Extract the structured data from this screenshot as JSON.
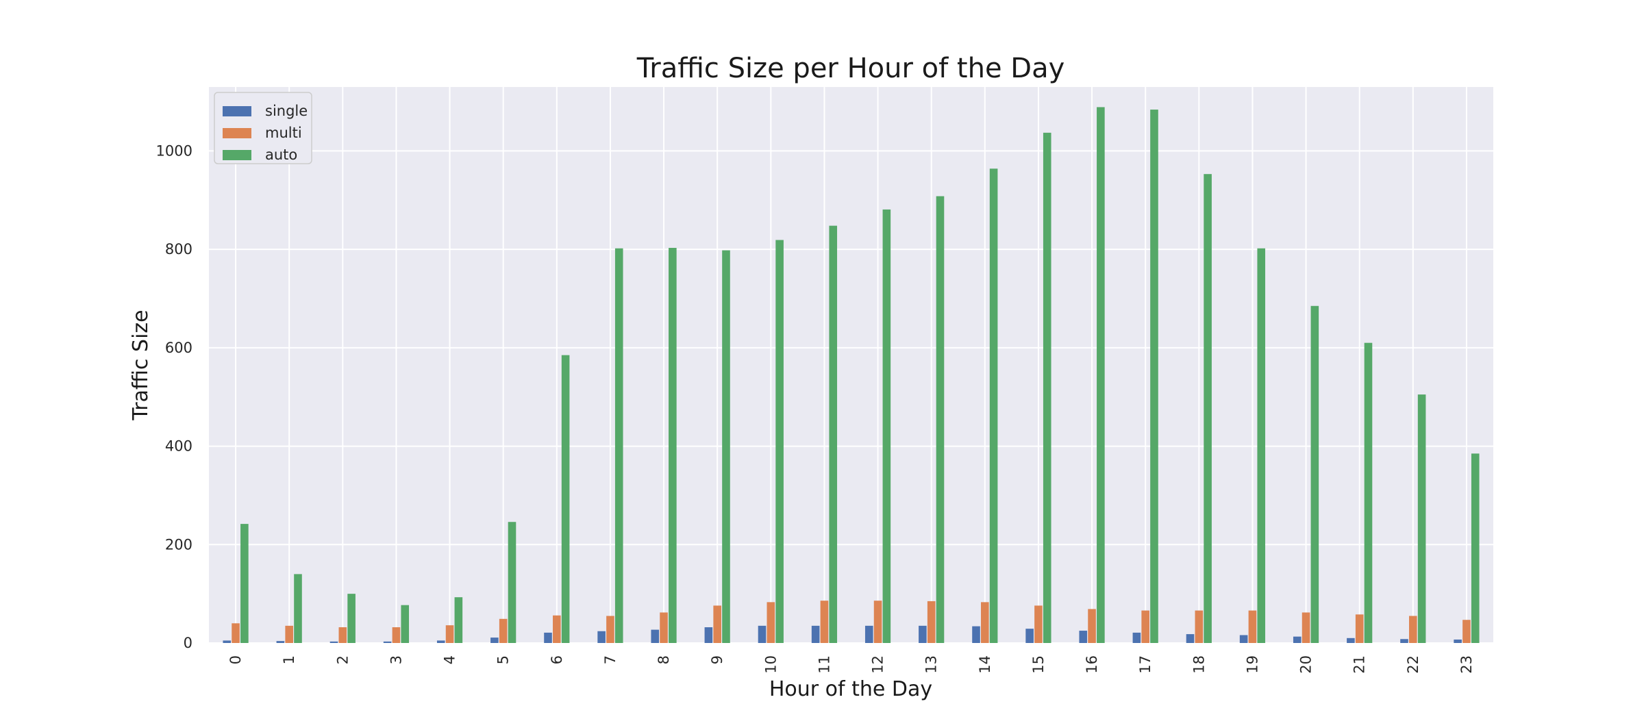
{
  "chart_data": {
    "type": "bar",
    "title": "Traffic Size per Hour of the Day",
    "xlabel": "Hour of the Day",
    "ylabel": "Traffic Size",
    "ylim": [
      0,
      1130
    ],
    "yticks": [
      0,
      200,
      400,
      600,
      800,
      1000
    ],
    "grid": true,
    "legend_position": "top-left",
    "categories": [
      "0",
      "1",
      "2",
      "3",
      "4",
      "5",
      "6",
      "7",
      "8",
      "9",
      "10",
      "11",
      "12",
      "13",
      "14",
      "15",
      "16",
      "17",
      "18",
      "19",
      "20",
      "21",
      "22",
      "23"
    ],
    "series": [
      {
        "name": "single",
        "color": "#4c72b0",
        "values": [
          5,
          4,
          3,
          3,
          5,
          11,
          21,
          24,
          27,
          32,
          35,
          35,
          35,
          35,
          34,
          29,
          25,
          21,
          18,
          16,
          13,
          10,
          8,
          7
        ]
      },
      {
        "name": "multi",
        "color": "#dd8452",
        "values": [
          40,
          35,
          32,
          32,
          36,
          49,
          56,
          55,
          62,
          76,
          83,
          86,
          86,
          85,
          83,
          76,
          69,
          66,
          66,
          66,
          62,
          58,
          55,
          47
        ]
      },
      {
        "name": "auto",
        "color": "#55a868",
        "values": [
          242,
          140,
          100,
          77,
          93,
          246,
          585,
          802,
          803,
          798,
          819,
          848,
          881,
          908,
          964,
          1037,
          1089,
          1084,
          953,
          802,
          685,
          610,
          505,
          385
        ]
      }
    ]
  }
}
